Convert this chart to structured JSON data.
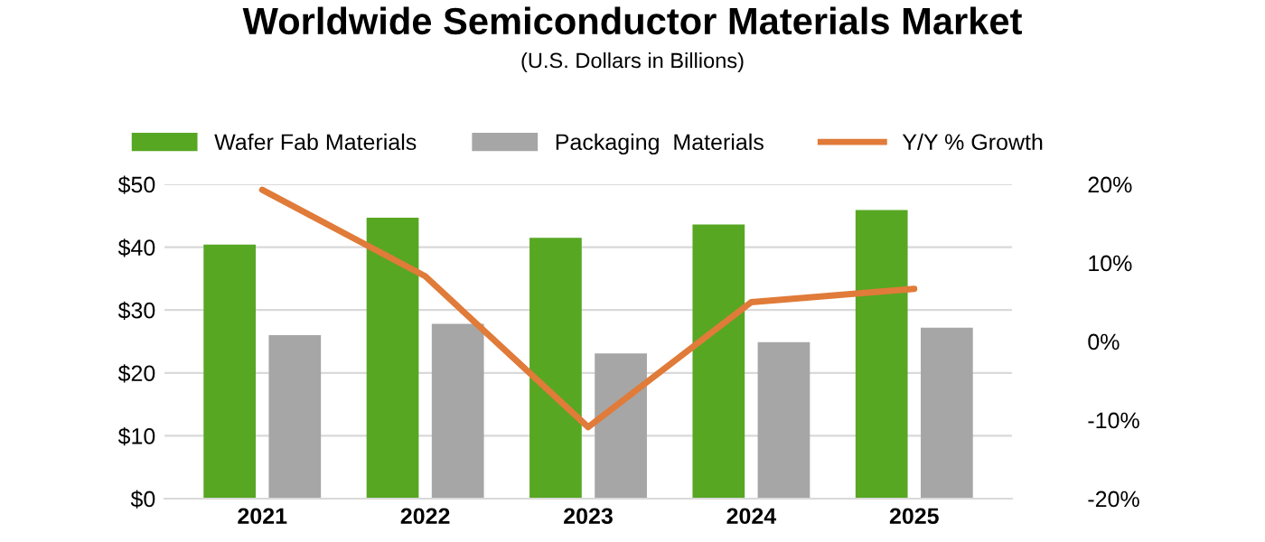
{
  "chart_data": {
    "type": "bar",
    "title": "Worldwide Semiconductor Materials Market",
    "subtitle": "(U.S. Dollars in Billions)",
    "categories": [
      "2021",
      "2022",
      "2023",
      "2024",
      "2025"
    ],
    "series": [
      {
        "name": "Wafer Fab Materials",
        "color": "#57a723",
        "values": [
          40.4,
          44.7,
          41.5,
          43.6,
          45.9
        ]
      },
      {
        "name": "Packaging  Materials",
        "color": "#a6a6a6",
        "values": [
          26.0,
          27.8,
          23.1,
          24.9,
          27.2
        ]
      },
      {
        "name": "Y/Y % Growth",
        "type": "line",
        "axis": "y2",
        "color": "#e07b39",
        "values": [
          19.3,
          8.3,
          -10.9,
          5.0,
          6.7
        ]
      }
    ],
    "ylim": [
      0,
      50
    ],
    "yticks": [
      {
        "value": 0,
        "label": "$0"
      },
      {
        "value": 10,
        "label": "$10"
      },
      {
        "value": 20,
        "label": "$20"
      },
      {
        "value": 30,
        "label": "$30"
      },
      {
        "value": 40,
        "label": "$40"
      },
      {
        "value": 50,
        "label": "$50"
      }
    ],
    "y2lim": [
      -20,
      20
    ],
    "y2ticks": [
      {
        "value": -20,
        "label": "-20%"
      },
      {
        "value": -10,
        "label": "-10%"
      },
      {
        "value": 0,
        "label": "0%"
      },
      {
        "value": 10,
        "label": "10%"
      },
      {
        "value": 20,
        "label": "20%"
      }
    ],
    "grid": "y",
    "legend": "top"
  }
}
